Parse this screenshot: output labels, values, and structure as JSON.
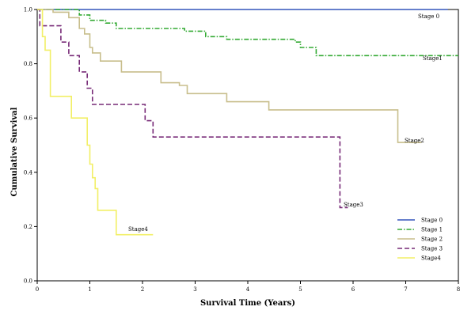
{
  "chart_data": {
    "type": "line",
    "title": "",
    "xlabel": "Survival Time (Years)",
    "ylabel": "Cumulative Survival",
    "xlim": [
      0,
      8
    ],
    "ylim": [
      0.0,
      1.0
    ],
    "xticks": [
      "0",
      "1",
      "2",
      "3",
      "4",
      "5",
      "6",
      "7",
      "8"
    ],
    "yticks": [
      "0.0",
      "0.2",
      "0.4",
      "0.6",
      "0.8",
      "1.0"
    ],
    "grid": false,
    "legend_position": "bottom-right",
    "step": true,
    "series": [
      {
        "name": "Stage 0",
        "label": "Stage 0",
        "color": "#3355bb",
        "dash": "solid",
        "points": [
          [
            0,
            1.0
          ],
          [
            7.8,
            1.0
          ]
        ]
      },
      {
        "name": "Stage 1",
        "label": "Stage1",
        "color": "#33aa33",
        "dash": "dashdot",
        "points": [
          [
            0,
            1.0
          ],
          [
            0.8,
            0.98
          ],
          [
            1.0,
            0.96
          ],
          [
            1.3,
            0.95
          ],
          [
            1.5,
            0.93
          ],
          [
            2.8,
            0.92
          ],
          [
            3.2,
            0.9
          ],
          [
            3.6,
            0.89
          ],
          [
            4.9,
            0.88
          ],
          [
            5.0,
            0.86
          ],
          [
            5.3,
            0.83
          ],
          [
            8.0,
            0.83
          ]
        ]
      },
      {
        "name": "Stage 2",
        "label": "Stage2",
        "color": "#c8be8c",
        "dash": "solid",
        "points": [
          [
            0,
            1.0
          ],
          [
            0.3,
            0.99
          ],
          [
            0.6,
            0.97
          ],
          [
            0.8,
            0.93
          ],
          [
            0.9,
            0.91
          ],
          [
            1.0,
            0.86
          ],
          [
            1.05,
            0.84
          ],
          [
            1.2,
            0.81
          ],
          [
            1.6,
            0.77
          ],
          [
            2.1,
            0.77
          ],
          [
            2.35,
            0.73
          ],
          [
            2.7,
            0.72
          ],
          [
            2.85,
            0.69
          ],
          [
            3.6,
            0.66
          ],
          [
            4.4,
            0.63
          ],
          [
            6.85,
            0.51
          ],
          [
            7.3,
            0.51
          ]
        ]
      },
      {
        "name": "Stage 3",
        "label": "Stage3",
        "color": "#772a77",
        "dash": "dash",
        "points": [
          [
            0,
            1.0
          ],
          [
            0.05,
            0.94
          ],
          [
            0.45,
            0.88
          ],
          [
            0.6,
            0.83
          ],
          [
            0.8,
            0.77
          ],
          [
            0.95,
            0.71
          ],
          [
            1.05,
            0.65
          ],
          [
            2.05,
            0.59
          ],
          [
            2.2,
            0.53
          ],
          [
            5.75,
            0.27
          ],
          [
            5.9,
            0.27
          ]
        ]
      },
      {
        "name": "Stage4",
        "label": "Stage4",
        "color": "#f2ef66",
        "dash": "solid",
        "points": [
          [
            0,
            1.0
          ],
          [
            0.1,
            0.9
          ],
          [
            0.15,
            0.85
          ],
          [
            0.25,
            0.68
          ],
          [
            0.65,
            0.6
          ],
          [
            0.95,
            0.5
          ],
          [
            1.0,
            0.43
          ],
          [
            1.05,
            0.38
          ],
          [
            1.1,
            0.34
          ],
          [
            1.15,
            0.26
          ],
          [
            1.5,
            0.17
          ],
          [
            2.2,
            0.17
          ]
        ]
      }
    ],
    "legend": [
      {
        "label": "Stage 0",
        "color": "#3355bb",
        "dash": "solid"
      },
      {
        "label": "Stage 1",
        "color": "#33aa33",
        "dash": "dashdot"
      },
      {
        "label": "Stage 2",
        "color": "#c8be8c",
        "dash": "solid"
      },
      {
        "label": "Stage 3",
        "color": "#772a77",
        "dash": "dash"
      },
      {
        "label": "Stage4",
        "color": "#f2ef66",
        "dash": "solid"
      }
    ]
  }
}
